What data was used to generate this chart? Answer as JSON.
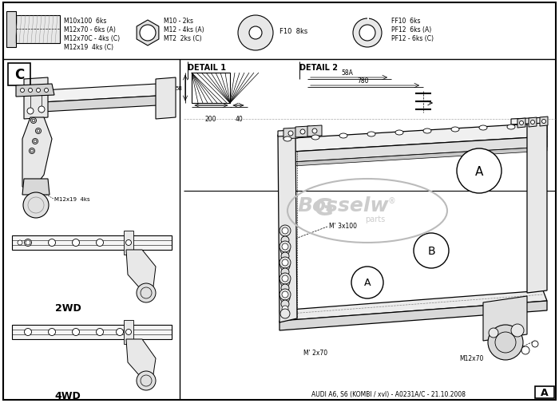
{
  "title": "AUDI A6, S6 (KOMBI / xvl) - A0231A/C - 21.10.2008",
  "bg_color": "#ffffff",
  "border_color": "#000000",
  "detail1_label": "DETAIL 1",
  "detail2_label": "DETAIL 2",
  "label_C": "C",
  "label_A_main": "A",
  "label_B": "B",
  "label_2WD": "2WD",
  "label_4WD": "4WD",
  "dim_200": "200",
  "dim_40": "40",
  "dim_58A": "58A",
  "dim_780": "780",
  "bolt_text1": [
    "M10x100  6ks",
    "M12x70 - 6ks (A)",
    "M12x70C - 4ks (C)",
    "M12x19  4ks (C)"
  ],
  "bolt_text2": [
    "M10 - 2ks",
    "M12 - 4ks (A)",
    "MT2  2ks (C)"
  ],
  "bolt_text3": "F10  8ks",
  "bolt_text4": [
    "FF10  6ks",
    "PF12  6ks (A)",
    "PF12 - 6ks (C)"
  ],
  "note_m12x70": "M12x70",
  "note_m2x70": "M' 2x70",
  "note_m3x100": "M' 3x100",
  "note_m12x19": "M12x19  4ks"
}
